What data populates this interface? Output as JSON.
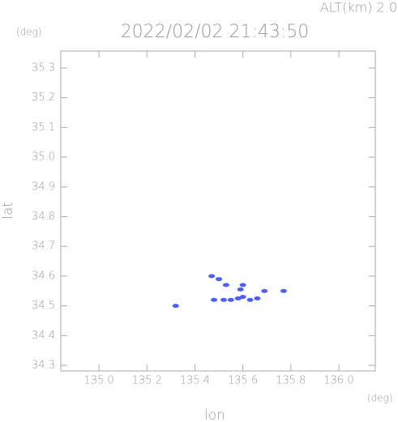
{
  "chart_data": {
    "type": "scatter",
    "title": "2022/02/02 21:43:50",
    "subtitle": "ALT(km) 2.0",
    "x_label": "lon",
    "y_label": "lat",
    "x_unit": "(deg)",
    "y_unit": "(deg)",
    "xlim": [
      134.841,
      136.152
    ],
    "ylim": [
      34.281,
      35.357
    ],
    "xticks": [
      {
        "value": 135,
        "label": "135.0"
      },
      135.2,
      135.4,
      135.6,
      135.8,
      {
        "value": 136,
        "label": "136.0"
      }
    ],
    "yticks": [
      34.3,
      34.4,
      34.5,
      34.6,
      34.7,
      34.8,
      34.9,
      {
        "value": 35,
        "label": "35.0"
      },
      35.1,
      35.2,
      35.3
    ],
    "series": [
      {
        "color": "#4f5ff2",
        "x": [
          135.32,
          135.47,
          135.5,
          135.53,
          135.6,
          135.59,
          135.48,
          135.52,
          135.55,
          135.58,
          135.6,
          135.63,
          135.66,
          135.69,
          135.77
        ],
        "y": [
          34.5,
          34.6,
          34.59,
          34.57,
          34.57,
          34.555,
          34.52,
          34.52,
          34.52,
          34.525,
          34.53,
          34.52,
          34.525,
          34.55,
          34.55
        ]
      }
    ]
  }
}
